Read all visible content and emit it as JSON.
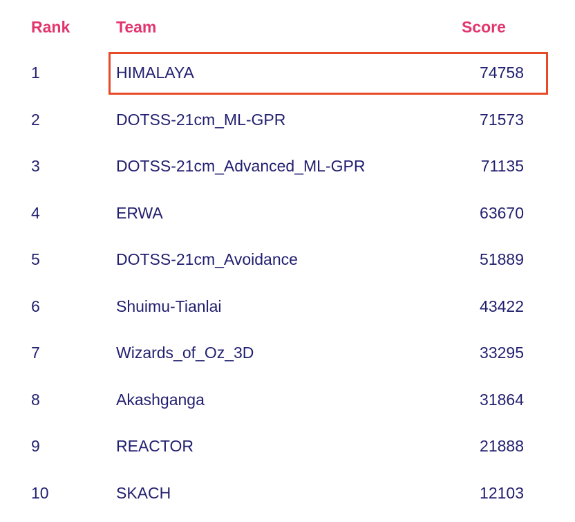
{
  "colors": {
    "header_text": "#e1356e",
    "body_text": "#211f6f",
    "highlight_border": "#e64a26",
    "background": "#ffffff"
  },
  "table": {
    "columns": [
      {
        "key": "rank",
        "label": "Rank"
      },
      {
        "key": "team",
        "label": "Team"
      },
      {
        "key": "score",
        "label": "Score"
      }
    ],
    "rows": [
      {
        "rank": "1",
        "team": "HIMALAYA",
        "score": "74758",
        "highlighted": true
      },
      {
        "rank": "2",
        "team": "DOTSS-21cm_ML-GPR",
        "score": "71573",
        "highlighted": false
      },
      {
        "rank": "3",
        "team": "DOTSS-21cm_Advanced_ML-GPR",
        "score": "71135",
        "highlighted": false
      },
      {
        "rank": "4",
        "team": "ERWA",
        "score": "63670",
        "highlighted": false
      },
      {
        "rank": "5",
        "team": "DOTSS-21cm_Avoidance",
        "score": "51889",
        "highlighted": false
      },
      {
        "rank": "6",
        "team": "Shuimu-Tianlai",
        "score": "43422",
        "highlighted": false
      },
      {
        "rank": "7",
        "team": "Wizards_of_Oz_3D",
        "score": "33295",
        "highlighted": false
      },
      {
        "rank": "8",
        "team": "Akashganga",
        "score": "31864",
        "highlighted": false
      },
      {
        "rank": "9",
        "team": "REACTOR",
        "score": "21888",
        "highlighted": false
      },
      {
        "rank": "10",
        "team": "SKACH",
        "score": "12103",
        "highlighted": false
      }
    ]
  }
}
